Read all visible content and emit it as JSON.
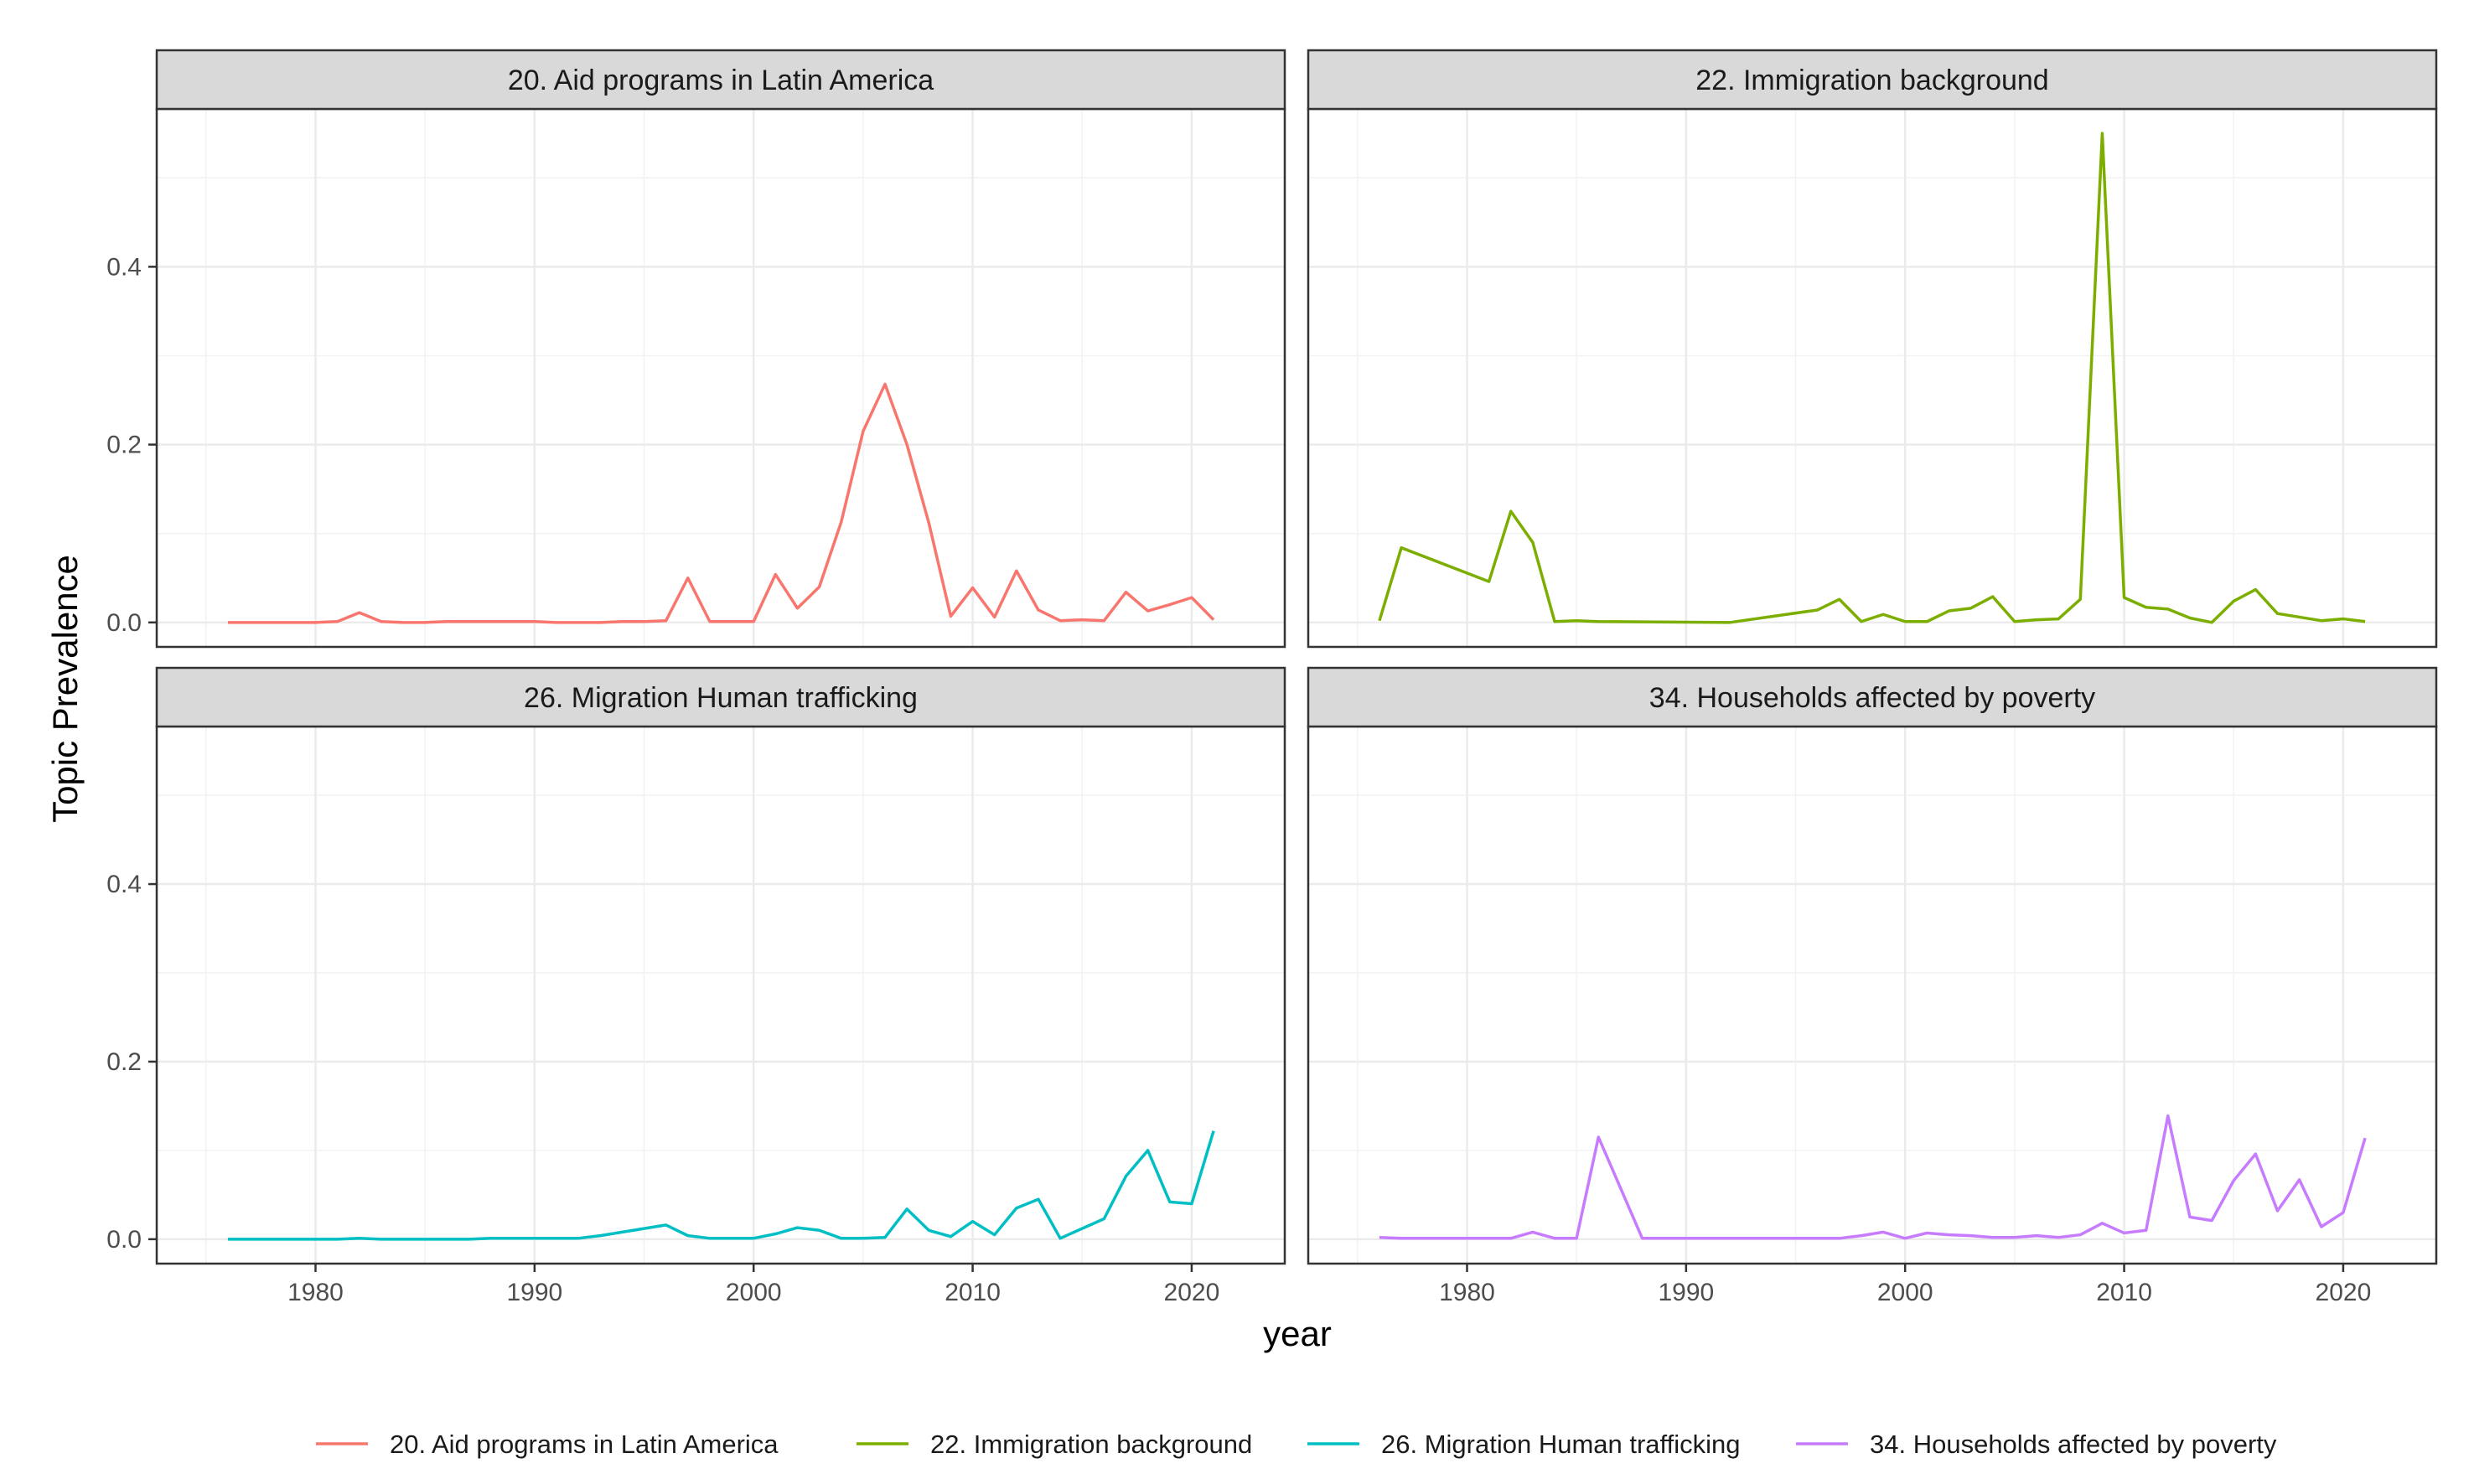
{
  "chart_data": {
    "type": "line",
    "layout": "facet-grid-2x2",
    "xlabel": "year",
    "ylabel": "Topic Prevalence",
    "xlim": [
      1972.75,
      2024.25
    ],
    "ylim": [
      -0.0275,
      0.5775
    ],
    "x_ticks": [
      1980,
      1990,
      2000,
      2010,
      2020
    ],
    "y_ticks": [
      0.0,
      0.2,
      0.4
    ],
    "y_tick_labels": [
      "0.0",
      "0.2",
      "0.4"
    ],
    "grid": true,
    "legend_position": "bottom",
    "panels": [
      {
        "title": "20. Aid programs in Latin America",
        "series_name": "20. Aid programs in Latin America",
        "color": "#F8766D",
        "x": [
          1976,
          1977,
          1978,
          1979,
          1980,
          1981,
          1982,
          1983,
          1984,
          1985,
          1986,
          1987,
          1988,
          1989,
          1990,
          1991,
          1992,
          1993,
          1994,
          1995,
          1996,
          1997,
          1998,
          1999,
          2000,
          2001,
          2002,
          2003,
          2004,
          2005,
          2006,
          2007,
          2008,
          2009,
          2010,
          2011,
          2012,
          2013,
          2014,
          2015,
          2016,
          2017,
          2018,
          2019,
          2020,
          2021
        ],
        "y": [
          0.0,
          0.0,
          0.0,
          0.0,
          0.0,
          0.001,
          0.011,
          0.001,
          0.0,
          0.0,
          0.001,
          0.001,
          0.001,
          0.001,
          0.001,
          0.0,
          0.0,
          0.0,
          0.001,
          0.001,
          0.002,
          0.05,
          0.001,
          0.001,
          0.001,
          0.054,
          0.016,
          0.04,
          0.113,
          0.215,
          0.268,
          0.2,
          0.112,
          0.007,
          0.039,
          0.006,
          0.058,
          0.014,
          0.002,
          0.003,
          0.002,
          0.034,
          0.013,
          0.02,
          0.028,
          0.003
        ]
      },
      {
        "title": "22. Immigration background",
        "series_name": "22. Immigration background",
        "color": "#7CAE00",
        "x": [
          1976,
          1977,
          1981,
          1982,
          1983,
          1984,
          1985,
          1986,
          1992,
          1996,
          1997,
          1998,
          1999,
          2000,
          2001,
          2002,
          2003,
          2004,
          2005,
          2006,
          2007,
          2008,
          2009,
          2010,
          2011,
          2012,
          2013,
          2014,
          2015,
          2016,
          2017,
          2019,
          2020,
          2021
        ],
        "y": [
          0.002,
          0.084,
          0.046,
          0.125,
          0.09,
          0.001,
          0.002,
          0.001,
          0.0,
          0.014,
          0.026,
          0.001,
          0.009,
          0.001,
          0.001,
          0.013,
          0.016,
          0.029,
          0.001,
          0.003,
          0.004,
          0.026,
          0.55,
          0.028,
          0.017,
          0.015,
          0.005,
          0.0,
          0.024,
          0.037,
          0.01,
          0.002,
          0.004,
          0.001
        ]
      },
      {
        "title": "26. Migration Human trafficking",
        "series_name": "26. Migration Human trafficking",
        "color": "#00BFC4",
        "x": [
          1976,
          1977,
          1978,
          1979,
          1980,
          1981,
          1982,
          1983,
          1984,
          1985,
          1986,
          1987,
          1988,
          1989,
          1990,
          1991,
          1992,
          1993,
          1994,
          1995,
          1996,
          1997,
          1998,
          1999,
          2000,
          2001,
          2002,
          2003,
          2004,
          2005,
          2006,
          2007,
          2008,
          2009,
          2010,
          2011,
          2012,
          2013,
          2014,
          2015,
          2016,
          2017,
          2018,
          2019,
          2020,
          2021
        ],
        "y": [
          0.0,
          0.0,
          0.0,
          0.0,
          0.0,
          0.0,
          0.001,
          0.0,
          0.0,
          0.0,
          0.0,
          0.0,
          0.001,
          0.001,
          0.001,
          0.001,
          0.001,
          0.004,
          0.008,
          0.012,
          0.016,
          0.004,
          0.001,
          0.001,
          0.001,
          0.006,
          0.013,
          0.01,
          0.001,
          0.001,
          0.002,
          0.034,
          0.01,
          0.003,
          0.02,
          0.005,
          0.035,
          0.045,
          0.001,
          0.012,
          0.023,
          0.071,
          0.1,
          0.042,
          0.04,
          0.122
        ]
      },
      {
        "title": "34. Households affected by poverty",
        "series_name": "34. Households affected by poverty",
        "color": "#C77CFF",
        "x": [
          1976,
          1977,
          1978,
          1979,
          1980,
          1981,
          1982,
          1983,
          1984,
          1985,
          1986,
          1987,
          1988,
          1989,
          1990,
          1991,
          1992,
          1993,
          1994,
          1995,
          1996,
          1997,
          1998,
          1999,
          2000,
          2001,
          2002,
          2003,
          2004,
          2005,
          2006,
          2007,
          2008,
          2009,
          2010,
          2011,
          2012,
          2013,
          2014,
          2015,
          2016,
          2017,
          2018,
          2019,
          2020,
          2021
        ],
        "y": [
          0.002,
          0.001,
          0.001,
          0.001,
          0.001,
          0.001,
          0.001,
          0.008,
          0.001,
          0.001,
          0.115,
          0.058,
          0.001,
          0.001,
          0.001,
          0.001,
          0.001,
          0.001,
          0.001,
          0.001,
          0.001,
          0.001,
          0.004,
          0.008,
          0.001,
          0.007,
          0.005,
          0.004,
          0.002,
          0.002,
          0.004,
          0.002,
          0.005,
          0.018,
          0.007,
          0.01,
          0.139,
          0.025,
          0.021,
          0.066,
          0.096,
          0.032,
          0.067,
          0.014,
          0.03,
          0.114
        ]
      }
    ]
  }
}
